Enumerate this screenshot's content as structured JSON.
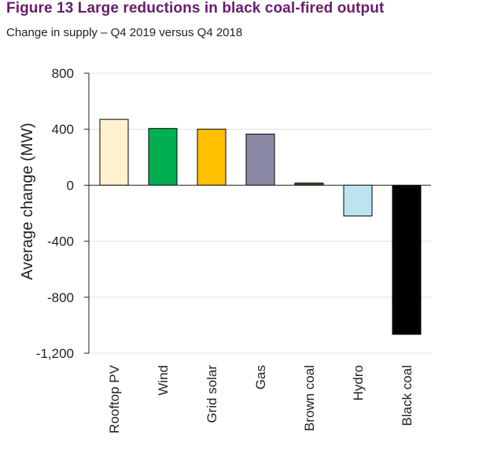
{
  "figure": {
    "title": "Figure 13  Large reductions in black coal-fired output",
    "subtitle": "Change in supply – Q4 2019 versus Q4 2018"
  },
  "chart_data": {
    "type": "bar",
    "title": "Large reductions in black coal-fired output",
    "subtitle": "Change in supply – Q4 2019 versus Q4 2018",
    "xlabel": "",
    "ylabel": "Average change (MW)",
    "ylim": [
      -1200,
      800
    ],
    "yticks": [
      800,
      400,
      0,
      -400,
      -800,
      -1200
    ],
    "ytick_labels": [
      "800",
      "400",
      "0",
      "-400",
      "-800",
      "-1,200"
    ],
    "grid": true,
    "categories": [
      "Rooftop PV",
      "Wind",
      "Grid solar",
      "Gas",
      "Brown coal",
      "Hydro",
      "Black coal"
    ],
    "values": [
      470,
      405,
      400,
      365,
      15,
      -220,
      -1065
    ],
    "colors": [
      "#FFF2CC",
      "#00B050",
      "#FFC000",
      "#8A8AA6",
      "#4B4B2B",
      "#BCE4F0",
      "#000000"
    ]
  }
}
